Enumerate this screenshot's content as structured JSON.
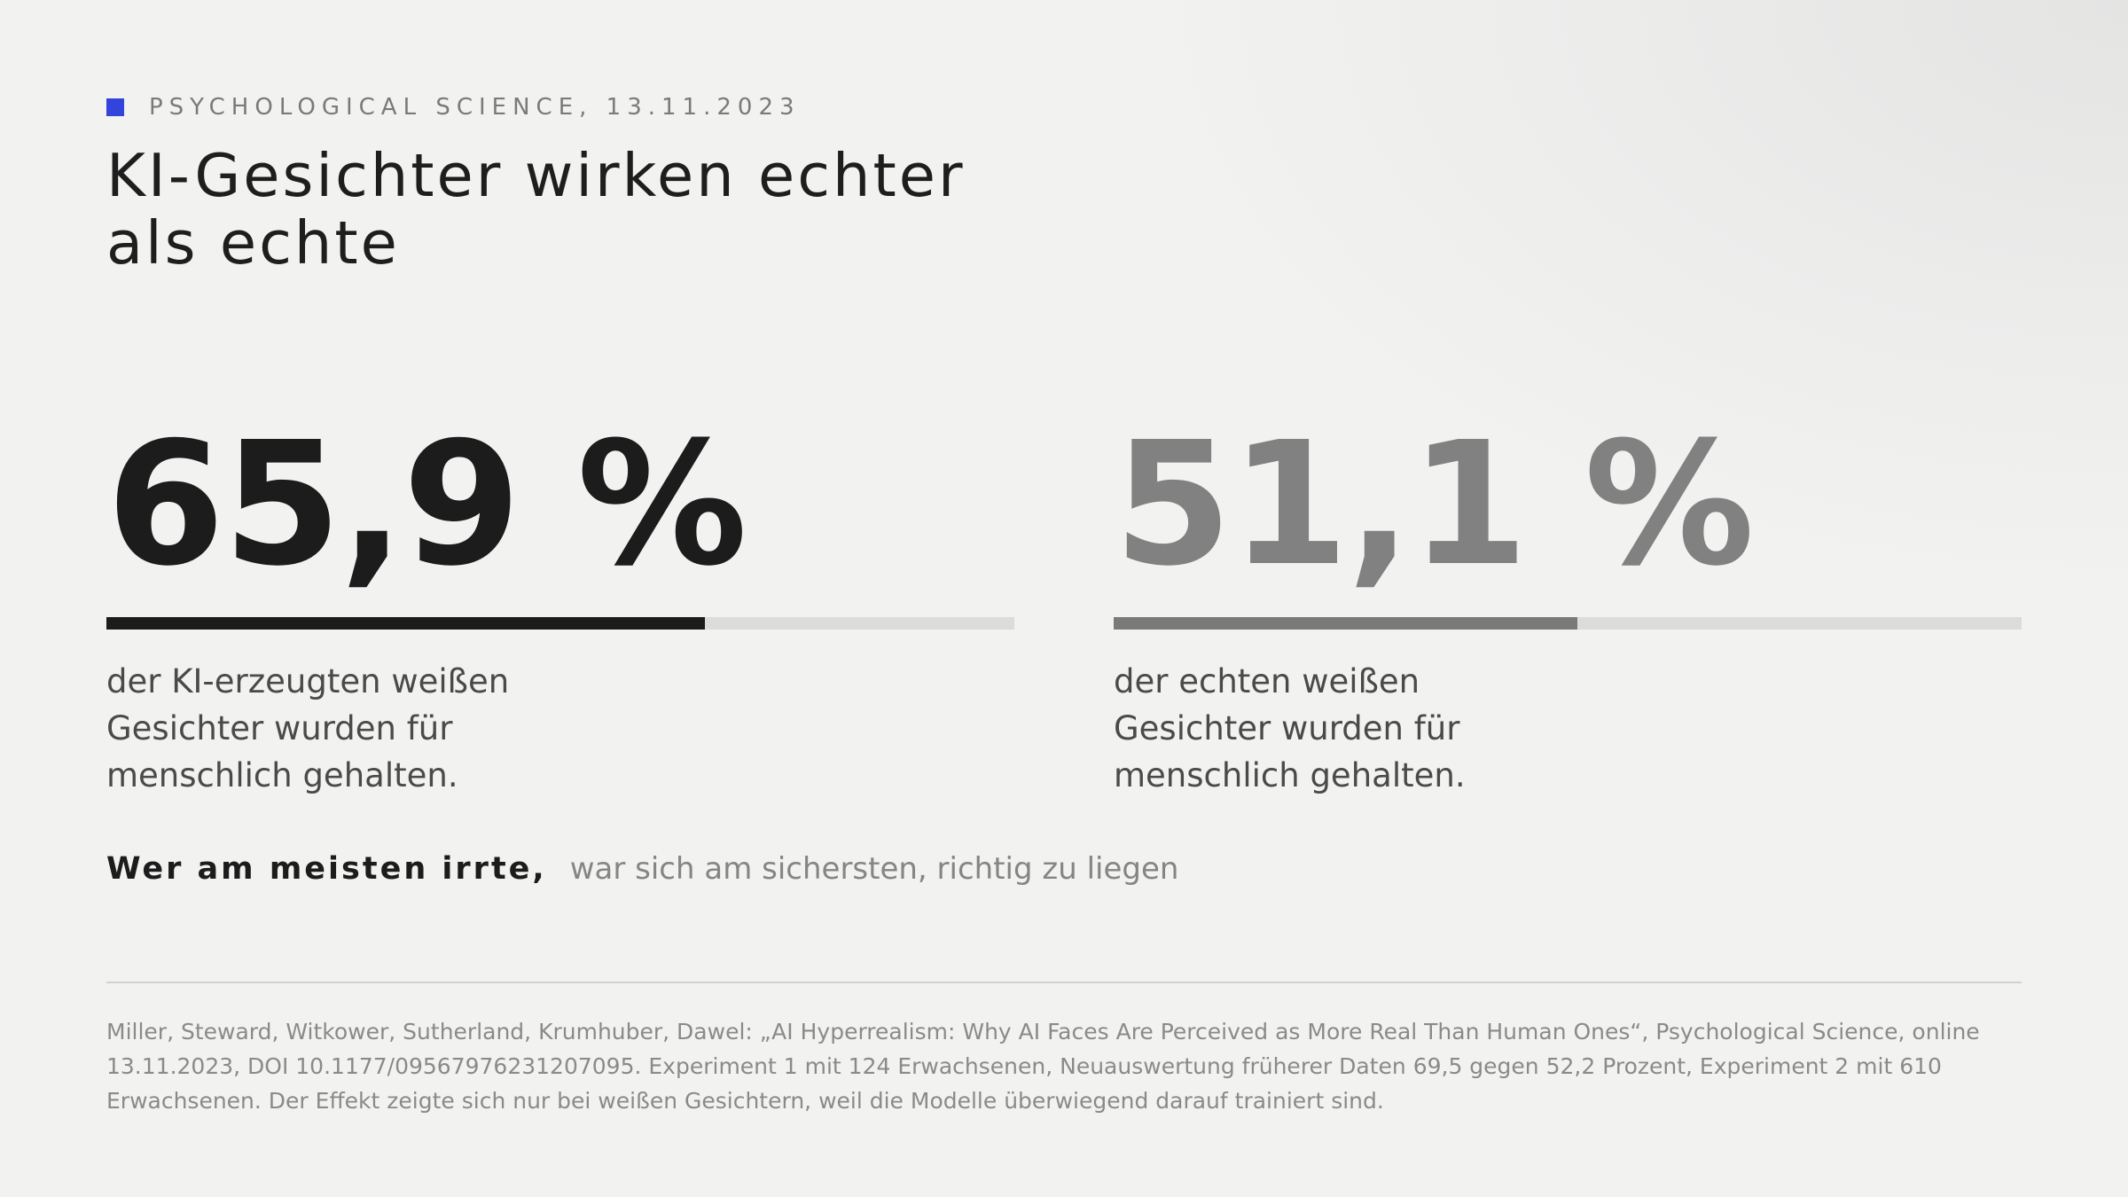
{
  "header": {
    "kicker": "PSYCHOLOGICAL SCIENCE, 13.11.2023",
    "title_line1": "KI-Gesichter wirken echter",
    "title_line2": "als echte",
    "accent_color": "#3344dd"
  },
  "chart_data": {
    "type": "bar",
    "title": "KI-Gesichter wirken echter als echte",
    "ylim": [
      0,
      100
    ],
    "series": [
      {
        "value": 65.9,
        "value_label": "65,9 %",
        "description": "der KI-erzeugten weißen Gesichter wurden für menschlich gehalten.",
        "color": "#1c1c1c"
      },
      {
        "value": 51.1,
        "value_label": "51,1 %",
        "description": "der echten weißen Gesichter wurden für menschlich gehalten.",
        "color": "#7a7a7a"
      }
    ]
  },
  "tagline": {
    "strong": "Wer am meisten irrte,",
    "rest": "war sich am sichersten, richtig zu liegen"
  },
  "footnote": "Miller, Steward, Witkower, Sutherland, Krumhuber, Dawel: „AI Hyperrealism: Why AI Faces Are Perceived as More Real Than Human Ones“, Psychological Science, online 13.11.2023, DOI 10.1177/09567976231207095. Experiment 1 mit 124 Erwachsenen, Neuauswertung früherer Daten 69,5 gegen 52,2 Prozent, Experiment 2 mit 610 Erwachsenen. Der Effekt zeigte sich nur bei weißen Gesichtern, weil die Modelle überwiegend darauf trainiert sind."
}
